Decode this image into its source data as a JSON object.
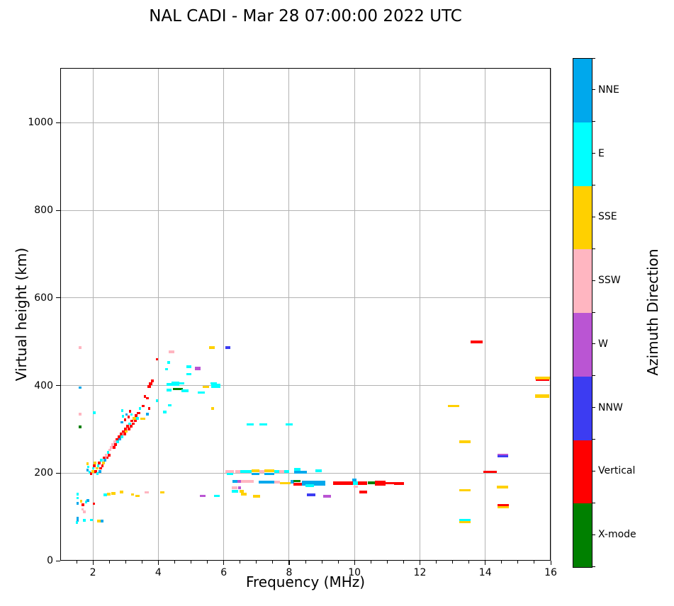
{
  "chart_data": {
    "type": "scatter",
    "title": "NAL CADI - Mar 28 07:00:00 2022 UTC",
    "xlabel": "Frequency (MHz)",
    "ylabel": "Virtual height (km)",
    "xlim": [
      1,
      16
    ],
    "ylim": [
      0,
      1125
    ],
    "xticks": [
      2,
      4,
      6,
      8,
      10,
      12,
      14,
      16
    ],
    "xminor_step": 0.5,
    "yticks": [
      0,
      200,
      400,
      600,
      800,
      1000
    ],
    "grid": true,
    "colorbar": {
      "label": "Azimuth Direction",
      "categories": [
        {
          "label": "NNE",
          "color": "#00A8EC"
        },
        {
          "label": "E",
          "color": "#00FFFF"
        },
        {
          "label": "SSE",
          "color": "#FFD000"
        },
        {
          "label": "SSW",
          "color": "#FFB6C1"
        },
        {
          "label": "W",
          "color": "#BA55D3"
        },
        {
          "label": "NNW",
          "color": "#3C3CF2"
        },
        {
          "label": "Vertical",
          "color": "#FF0000"
        },
        {
          "label": "X-mode",
          "color": "#008000"
        }
      ]
    },
    "point_format": [
      "freq_start_MHz",
      "freq_end_MHz",
      "virtual_height_km",
      "azimuth_direction",
      "optional_thickness_km"
    ],
    "points": [
      [
        1.5,
        1.57,
        152,
        "E"
      ],
      [
        1.5,
        1.57,
        143,
        "E"
      ],
      [
        1.5,
        1.57,
        131,
        "NNE"
      ],
      [
        1.6,
        1.68,
        136,
        "SSE"
      ],
      [
        1.66,
        1.74,
        128,
        "Vertical"
      ],
      [
        1.75,
        1.82,
        134,
        "E"
      ],
      [
        1.8,
        1.88,
        137,
        "NNE"
      ],
      [
        1.64,
        1.72,
        117,
        "SSW"
      ],
      [
        1.7,
        1.78,
        111,
        "SSW"
      ],
      [
        2.0,
        2.07,
        130,
        "Vertical"
      ],
      [
        1.5,
        1.57,
        95,
        "NNE",
        12
      ],
      [
        1.48,
        1.55,
        87,
        "E"
      ],
      [
        1.7,
        1.77,
        92,
        "E"
      ],
      [
        1.92,
        1.99,
        93,
        "E"
      ],
      [
        2.13,
        2.23,
        91,
        "SSE"
      ],
      [
        2.23,
        2.33,
        91,
        "NNE"
      ],
      [
        2.33,
        2.43,
        150,
        "E"
      ],
      [
        2.43,
        2.53,
        152,
        "SSE"
      ],
      [
        2.57,
        2.7,
        153,
        "SSE"
      ],
      [
        2.83,
        2.93,
        157,
        "SSE"
      ],
      [
        3.16,
        3.26,
        151,
        "SSE"
      ],
      [
        3.3,
        3.42,
        148,
        "SSE"
      ],
      [
        3.58,
        3.7,
        156,
        "SSW"
      ],
      [
        4.05,
        4.18,
        156,
        "SSE"
      ],
      [
        1.8,
        1.87,
        222,
        "SSE"
      ],
      [
        1.82,
        1.89,
        214,
        "E"
      ],
      [
        1.8,
        1.87,
        207,
        "NNE"
      ],
      [
        1.86,
        1.94,
        202,
        "E"
      ],
      [
        1.9,
        1.98,
        199,
        "Vertical"
      ],
      [
        1.95,
        2.03,
        204,
        "SSE"
      ],
      [
        1.97,
        2.05,
        211,
        "E"
      ],
      [
        2.0,
        2.08,
        217,
        "Vertical"
      ],
      [
        2.02,
        2.1,
        223,
        "SSE"
      ],
      [
        2.05,
        2.13,
        204,
        "Vertical"
      ],
      [
        2.08,
        2.16,
        211,
        "SSE"
      ],
      [
        2.1,
        2.18,
        199,
        "E"
      ],
      [
        2.12,
        2.2,
        217,
        "E"
      ],
      [
        2.15,
        2.23,
        223,
        "Vertical"
      ],
      [
        2.17,
        2.25,
        204,
        "NNE"
      ],
      [
        2.2,
        2.28,
        211,
        "Vertical"
      ],
      [
        2.22,
        2.3,
        229,
        "E"
      ],
      [
        2.25,
        2.33,
        217,
        "Vertical"
      ],
      [
        2.28,
        2.36,
        223,
        "SSE"
      ],
      [
        2.3,
        2.38,
        235,
        "Vertical"
      ],
      [
        2.33,
        2.41,
        229,
        "NNE"
      ],
      [
        2.36,
        2.44,
        241,
        "SSW"
      ],
      [
        2.4,
        2.48,
        235,
        "Vertical"
      ],
      [
        2.42,
        2.5,
        247,
        "E"
      ],
      [
        2.45,
        2.53,
        241,
        "Vertical"
      ],
      [
        2.48,
        2.57,
        253,
        "SSW"
      ],
      [
        2.52,
        2.61,
        259,
        "SSW"
      ],
      [
        2.56,
        2.65,
        265,
        "SSW"
      ],
      [
        2.6,
        2.69,
        259,
        "Vertical"
      ],
      [
        2.62,
        2.71,
        271,
        "SSW"
      ],
      [
        2.65,
        2.74,
        265,
        "Vertical"
      ],
      [
        2.68,
        2.77,
        277,
        "Vertical"
      ],
      [
        2.72,
        2.81,
        271,
        "E"
      ],
      [
        2.75,
        2.84,
        283,
        "Vertical"
      ],
      [
        2.78,
        2.87,
        277,
        "NNE"
      ],
      [
        2.82,
        2.91,
        289,
        "Vertical"
      ],
      [
        2.85,
        2.94,
        283,
        "E"
      ],
      [
        2.88,
        2.97,
        295,
        "Vertical"
      ],
      [
        2.92,
        3.01,
        289,
        "Vertical"
      ],
      [
        2.95,
        3.04,
        301,
        "Vertical"
      ],
      [
        2.98,
        3.07,
        295,
        "SSE"
      ],
      [
        3.02,
        3.11,
        307,
        "Vertical"
      ],
      [
        3.05,
        3.14,
        301,
        "Vertical"
      ],
      [
        3.08,
        3.17,
        313,
        "E"
      ],
      [
        3.12,
        3.21,
        307,
        "Vertical"
      ],
      [
        3.15,
        3.24,
        319,
        "Vertical"
      ],
      [
        3.18,
        3.27,
        313,
        "Vertical"
      ],
      [
        3.22,
        3.31,
        325,
        "SSE"
      ],
      [
        3.25,
        3.34,
        319,
        "Vertical"
      ],
      [
        3.28,
        3.37,
        331,
        "Vertical"
      ],
      [
        3.32,
        3.41,
        325,
        "E"
      ],
      [
        3.35,
        3.44,
        337,
        "Vertical"
      ],
      [
        2.85,
        2.92,
        316,
        "NNE"
      ],
      [
        2.88,
        2.95,
        330,
        "E"
      ],
      [
        2.86,
        2.93,
        343,
        "E"
      ],
      [
        2.95,
        3.02,
        322,
        "Vertical"
      ],
      [
        3.0,
        3.07,
        334,
        "NNE"
      ],
      [
        3.05,
        3.12,
        328,
        "Vertical"
      ],
      [
        3.1,
        3.17,
        341,
        "Vertical"
      ],
      [
        3.15,
        3.22,
        334,
        "E"
      ],
      [
        3.4,
        3.48,
        348,
        "E"
      ],
      [
        3.45,
        3.6,
        324,
        "SSE"
      ],
      [
        3.62,
        3.7,
        335,
        "NNE"
      ],
      [
        3.68,
        3.76,
        348,
        "Vertical"
      ],
      [
        3.5,
        3.58,
        353,
        "Vertical"
      ],
      [
        3.55,
        3.63,
        375,
        "Vertical"
      ],
      [
        3.62,
        3.7,
        371,
        "Vertical"
      ],
      [
        3.67,
        3.77,
        398,
        "Vertical"
      ],
      [
        3.72,
        3.82,
        404,
        "Vertical"
      ],
      [
        3.78,
        3.86,
        411,
        "Vertical"
      ],
      [
        3.92,
        4.0,
        460,
        "Vertical"
      ],
      [
        3.93,
        4.0,
        365,
        "E"
      ],
      [
        4.3,
        4.4,
        355,
        "E"
      ],
      [
        4.15,
        4.25,
        339,
        "E"
      ],
      [
        2.0,
        2.08,
        338,
        "E"
      ],
      [
        4.32,
        4.5,
        477,
        "SSW"
      ],
      [
        4.28,
        4.37,
        453,
        "E"
      ],
      [
        4.2,
        4.3,
        437,
        "E"
      ],
      [
        4.85,
        5.0,
        443,
        "E"
      ],
      [
        5.12,
        5.3,
        439,
        "W",
        9
      ],
      [
        4.85,
        5.0,
        426,
        "E"
      ],
      [
        4.25,
        4.4,
        403,
        "E"
      ],
      [
        4.4,
        4.65,
        404,
        "E",
        9
      ],
      [
        4.62,
        4.8,
        405,
        "E"
      ],
      [
        5.35,
        5.55,
        397,
        "SSE"
      ],
      [
        5.6,
        5.78,
        405,
        "E"
      ],
      [
        5.62,
        5.9,
        399,
        "E",
        9
      ],
      [
        4.45,
        4.75,
        392,
        "X-mode"
      ],
      [
        4.7,
        4.92,
        388,
        "E"
      ],
      [
        5.2,
        5.42,
        384,
        "E"
      ],
      [
        4.25,
        4.4,
        390,
        "E"
      ],
      [
        5.55,
        5.72,
        486,
        "SSE"
      ],
      [
        6.05,
        6.2,
        486,
        "NNW"
      ],
      [
        5.62,
        5.7,
        347,
        "SSE"
      ],
      [
        1.57,
        1.64,
        486,
        "SSW"
      ],
      [
        1.57,
        1.64,
        395,
        "NNE"
      ],
      [
        1.57,
        1.64,
        335,
        "SSW"
      ],
      [
        1.57,
        1.64,
        306,
        "X-mode"
      ],
      [
        5.27,
        5.45,
        148,
        "W"
      ],
      [
        5.7,
        5.88,
        148,
        "E"
      ],
      [
        6.05,
        6.3,
        204,
        "SSW"
      ],
      [
        6.1,
        6.3,
        198,
        "E"
      ],
      [
        6.35,
        6.5,
        204,
        "SSW"
      ],
      [
        6.5,
        6.85,
        204,
        "E"
      ],
      [
        6.85,
        7.1,
        205,
        "SSE"
      ],
      [
        6.85,
        7.1,
        198,
        "NNE"
      ],
      [
        7.1,
        7.25,
        204,
        "SSW"
      ],
      [
        7.25,
        7.55,
        205,
        "SSE"
      ],
      [
        7.25,
        7.55,
        198,
        "NNE"
      ],
      [
        7.55,
        7.7,
        204,
        "E"
      ],
      [
        7.7,
        7.85,
        204,
        "SSW"
      ],
      [
        7.85,
        8.0,
        204,
        "E"
      ],
      [
        8.15,
        8.35,
        208,
        "E"
      ],
      [
        8.15,
        8.55,
        202,
        "NNE",
        7
      ],
      [
        8.8,
        9.0,
        205,
        "E"
      ],
      [
        6.27,
        6.42,
        181,
        "NNE"
      ],
      [
        6.42,
        6.53,
        181,
        "W"
      ],
      [
        6.53,
        6.92,
        181,
        "SSW"
      ],
      [
        7.07,
        7.55,
        179,
        "NNE",
        7
      ],
      [
        7.55,
        7.72,
        179,
        "SSW"
      ],
      [
        7.72,
        8.05,
        177,
        "SSE"
      ],
      [
        8.05,
        8.16,
        180,
        "NNE",
        9
      ],
      [
        8.13,
        8.35,
        182,
        "X-mode"
      ],
      [
        8.13,
        8.4,
        174,
        "Vertical"
      ],
      [
        8.4,
        9.1,
        177,
        "NNE",
        10
      ],
      [
        8.5,
        8.75,
        171,
        "E"
      ],
      [
        9.35,
        9.95,
        177,
        "Vertical",
        9
      ],
      [
        9.93,
        10.05,
        184,
        "NNE"
      ],
      [
        9.95,
        10.12,
        177,
        "E",
        8
      ],
      [
        9.98,
        10.1,
        169,
        "SSW"
      ],
      [
        10.1,
        10.38,
        177,
        "Vertical",
        8
      ],
      [
        10.4,
        10.65,
        178,
        "X-mode"
      ],
      [
        10.62,
        10.95,
        177,
        "Vertical",
        11
      ],
      [
        10.95,
        11.22,
        177,
        "Vertical",
        4
      ],
      [
        11.22,
        11.52,
        176,
        "Vertical",
        7
      ],
      [
        10.15,
        10.38,
        157,
        "Vertical"
      ],
      [
        6.25,
        6.42,
        167,
        "SSW",
        7
      ],
      [
        6.44,
        6.52,
        167,
        "W"
      ],
      [
        6.25,
        6.45,
        158,
        "E"
      ],
      [
        6.48,
        6.62,
        158,
        "SSE"
      ],
      [
        6.52,
        6.7,
        152,
        "SSE"
      ],
      [
        6.9,
        7.12,
        147,
        "SSE"
      ],
      [
        6.7,
        6.92,
        311,
        "E"
      ],
      [
        7.1,
        7.33,
        311,
        "E"
      ],
      [
        7.9,
        8.12,
        311,
        "E"
      ],
      [
        8.55,
        8.8,
        150,
        "NNW"
      ],
      [
        9.05,
        9.27,
        147,
        "W"
      ],
      [
        13.55,
        13.92,
        500,
        "Vertical"
      ],
      [
        15.53,
        15.98,
        417,
        "SSE"
      ],
      [
        15.55,
        15.95,
        412,
        "Vertical",
        3
      ],
      [
        15.53,
        15.95,
        376,
        "SSE",
        7
      ],
      [
        12.85,
        13.2,
        353,
        "SSE"
      ],
      [
        13.2,
        13.55,
        272,
        "SSE"
      ],
      [
        14.38,
        14.7,
        242,
        "W",
        4
      ],
      [
        14.38,
        14.7,
        238,
        "NNW",
        5
      ],
      [
        13.95,
        14.35,
        203,
        "Vertical",
        6
      ],
      [
        14.35,
        14.7,
        168,
        "SSE"
      ],
      [
        13.2,
        13.55,
        161,
        "SSE",
        4
      ],
      [
        14.38,
        14.72,
        127,
        "Vertical",
        5
      ],
      [
        14.38,
        14.72,
        122,
        "SSE",
        4
      ],
      [
        13.2,
        13.55,
        93,
        "E",
        5
      ],
      [
        13.2,
        13.55,
        88,
        "SSE",
        4
      ]
    ]
  }
}
